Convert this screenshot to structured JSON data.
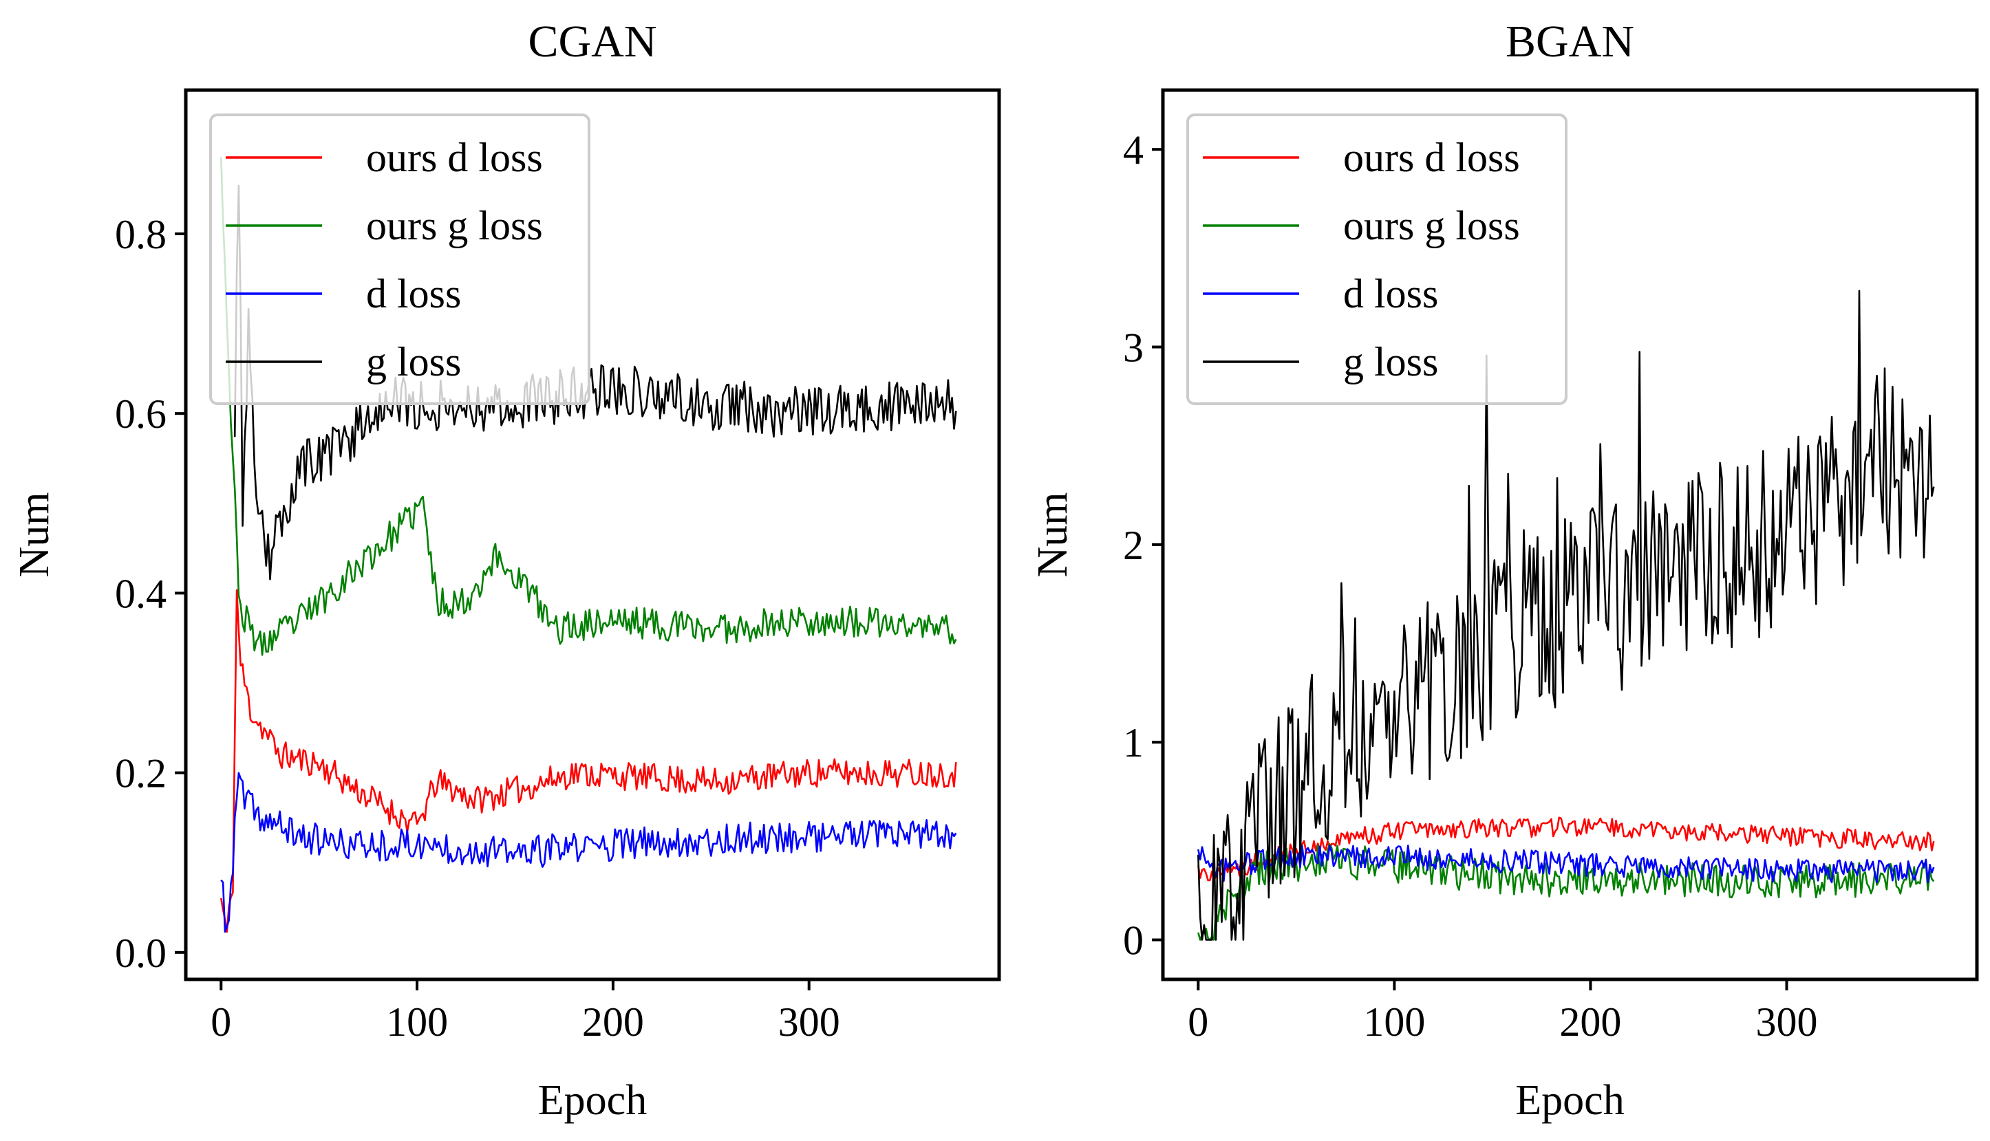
{
  "chart_data": [
    {
      "type": "line",
      "title": "CGAN",
      "xlabel": "Epoch",
      "ylabel": "Num",
      "xlim": [
        -18,
        397
      ],
      "ylim": [
        -0.03,
        0.96
      ],
      "x_ticks": [
        0,
        100,
        200,
        300
      ],
      "y_ticks": [
        0.0,
        0.2,
        0.4,
        0.6,
        0.8
      ],
      "y_tick_labels": [
        "0.0",
        "0.2",
        "0.4",
        "0.6",
        "0.8"
      ],
      "x_tick_labels": [
        "0",
        "100",
        "200",
        "300"
      ],
      "grid": false,
      "legend_position": "top-left",
      "epochs": 376,
      "series": [
        {
          "name": "ours d loss",
          "color": "#ff0000",
          "key": [
            [
              0,
              0.06
            ],
            [
              3,
              0.02
            ],
            [
              6,
              0.08
            ],
            [
              8,
              0.4
            ],
            [
              10,
              0.32
            ],
            [
              15,
              0.27
            ],
            [
              30,
              0.22
            ],
            [
              50,
              0.21
            ],
            [
              70,
              0.18
            ],
            [
              85,
              0.16
            ],
            [
              100,
              0.14
            ],
            [
              110,
              0.19
            ],
            [
              130,
              0.17
            ],
            [
              150,
              0.18
            ],
            [
              180,
              0.2
            ],
            [
              250,
              0.19
            ],
            [
              300,
              0.2
            ],
            [
              375,
              0.2
            ]
          ],
          "noise": 0.016,
          "seed": 11
        },
        {
          "name": "ours g loss",
          "color": "#008000",
          "key": [
            [
              0,
              0.9
            ],
            [
              2,
              0.76
            ],
            [
              5,
              0.6
            ],
            [
              8,
              0.45
            ],
            [
              10,
              0.38
            ],
            [
              20,
              0.34
            ],
            [
              40,
              0.37
            ],
            [
              60,
              0.41
            ],
            [
              80,
              0.45
            ],
            [
              95,
              0.48
            ],
            [
              103,
              0.5
            ],
            [
              110,
              0.39
            ],
            [
              125,
              0.39
            ],
            [
              140,
              0.44
            ],
            [
              155,
              0.41
            ],
            [
              170,
              0.36
            ],
            [
              200,
              0.37
            ],
            [
              250,
              0.36
            ],
            [
              300,
              0.37
            ],
            [
              375,
              0.36
            ]
          ],
          "noise": 0.018,
          "seed": 23
        },
        {
          "name": "d loss",
          "color": "#0000ff",
          "key": [
            [
              0,
              0.08
            ],
            [
              3,
              0.02
            ],
            [
              6,
              0.1
            ],
            [
              9,
              0.2
            ],
            [
              12,
              0.17
            ],
            [
              20,
              0.15
            ],
            [
              40,
              0.13
            ],
            [
              60,
              0.12
            ],
            [
              100,
              0.12
            ],
            [
              150,
              0.11
            ],
            [
              200,
              0.12
            ],
            [
              300,
              0.13
            ],
            [
              375,
              0.13
            ]
          ],
          "noise": 0.018,
          "seed": 37
        },
        {
          "name": "g loss",
          "color": "#000000",
          "key": [
            [
              7,
              0.6
            ],
            [
              9,
              0.88
            ],
            [
              11,
              0.5
            ],
            [
              14,
              0.7
            ],
            [
              18,
              0.48
            ],
            [
              25,
              0.44
            ],
            [
              40,
              0.54
            ],
            [
              60,
              0.56
            ],
            [
              80,
              0.61
            ],
            [
              100,
              0.61
            ],
            [
              150,
              0.61
            ],
            [
              200,
              0.63
            ],
            [
              250,
              0.61
            ],
            [
              300,
              0.6
            ],
            [
              375,
              0.61
            ]
          ],
          "noise": 0.03,
          "seed": 53
        }
      ]
    },
    {
      "type": "line",
      "title": "BGAN",
      "xlabel": "Epoch",
      "ylabel": "Num",
      "xlim": [
        -18,
        397
      ],
      "ylim": [
        -0.2,
        4.3
      ],
      "x_ticks": [
        0,
        100,
        200,
        300
      ],
      "y_ticks": [
        0,
        1,
        2,
        3,
        4
      ],
      "y_tick_labels": [
        "0",
        "1",
        "2",
        "3",
        "4"
      ],
      "x_tick_labels": [
        "0",
        "100",
        "200",
        "300"
      ],
      "grid": false,
      "legend_position": "top-left",
      "epochs": 376,
      "series": [
        {
          "name": "ours d loss",
          "color": "#ff0000",
          "key": [
            [
              0,
              0.35
            ],
            [
              10,
              0.32
            ],
            [
              30,
              0.4
            ],
            [
              60,
              0.48
            ],
            [
              100,
              0.55
            ],
            [
              150,
              0.57
            ],
            [
              200,
              0.57
            ],
            [
              250,
              0.55
            ],
            [
              300,
              0.52
            ],
            [
              375,
              0.5
            ]
          ],
          "noise": 0.05,
          "seed": 71
        },
        {
          "name": "ours g loss",
          "color": "#008000",
          "key": [
            [
              0,
              0.0
            ],
            [
              8,
              0.05
            ],
            [
              15,
              0.2
            ],
            [
              25,
              0.3
            ],
            [
              30,
              0.35
            ],
            [
              60,
              0.4
            ],
            [
              100,
              0.38
            ],
            [
              150,
              0.32
            ],
            [
              200,
              0.3
            ],
            [
              300,
              0.3
            ],
            [
              375,
              0.3
            ]
          ],
          "noise": 0.09,
          "seed": 83
        },
        {
          "name": "d loss",
          "color": "#0000ff",
          "key": [
            [
              0,
              0.45
            ],
            [
              10,
              0.35
            ],
            [
              30,
              0.4
            ],
            [
              60,
              0.42
            ],
            [
              100,
              0.42
            ],
            [
              150,
              0.4
            ],
            [
              200,
              0.38
            ],
            [
              300,
              0.35
            ],
            [
              375,
              0.35
            ]
          ],
          "noise": 0.06,
          "seed": 97
        },
        {
          "name": "g loss",
          "color": "#000000",
          "key": [
            [
              0,
              0.0
            ],
            [
              10,
              0.1
            ],
            [
              20,
              0.4
            ],
            [
              35,
              0.7
            ],
            [
              60,
              0.9
            ],
            [
              100,
              1.2
            ],
            [
              150,
              1.5
            ],
            [
              200,
              1.7
            ],
            [
              250,
              1.85
            ],
            [
              300,
              2.1
            ],
            [
              350,
              2.4
            ],
            [
              375,
              2.0
            ]
          ],
          "noise": 0.5,
          "seed": 109
        }
      ]
    }
  ]
}
